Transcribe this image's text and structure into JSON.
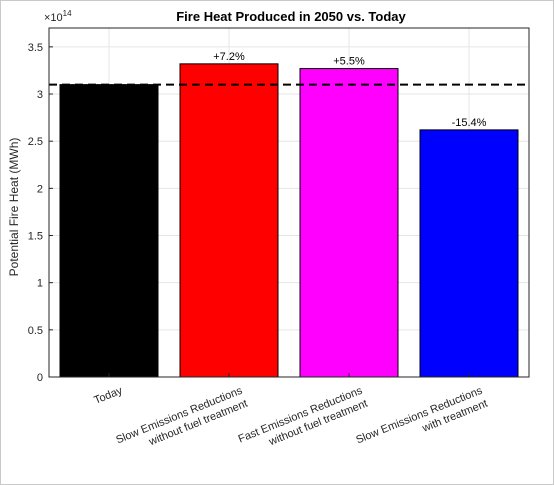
{
  "chart_data": {
    "type": "bar",
    "title": "Fire Heat Produced in 2050 vs. Today",
    "ylabel": "Potential Fire Heat (MWh)",
    "xlabel": "",
    "exponent_label": "×10",
    "exponent_power": "14",
    "ylim": [
      0,
      3.7
    ],
    "yticks": [
      0,
      0.5,
      1,
      1.5,
      2,
      2.5,
      3,
      3.5
    ],
    "ytick_labels": [
      "0",
      "0.5",
      "1",
      "1.5",
      "2",
      "2.5",
      "3",
      "3.5"
    ],
    "grid": true,
    "reference_line": 3.1,
    "categories": [
      {
        "lines": [
          "Today"
        ]
      },
      {
        "lines": [
          "Slow Emissions Reductions",
          "without fuel treatment"
        ]
      },
      {
        "lines": [
          "Fast Emissions Reductions",
          "without fuel treatment"
        ]
      },
      {
        "lines": [
          "Slow Emissions Reductions",
          "with treatment"
        ]
      }
    ],
    "values": [
      3.1,
      3.32,
      3.27,
      2.62
    ],
    "bar_colors": [
      "#000000",
      "#ff0000",
      "#ff00ff",
      "#0000ff"
    ],
    "data_labels": [
      "",
      "+7.2%",
      "+5.5%",
      "-15.4%"
    ]
  }
}
